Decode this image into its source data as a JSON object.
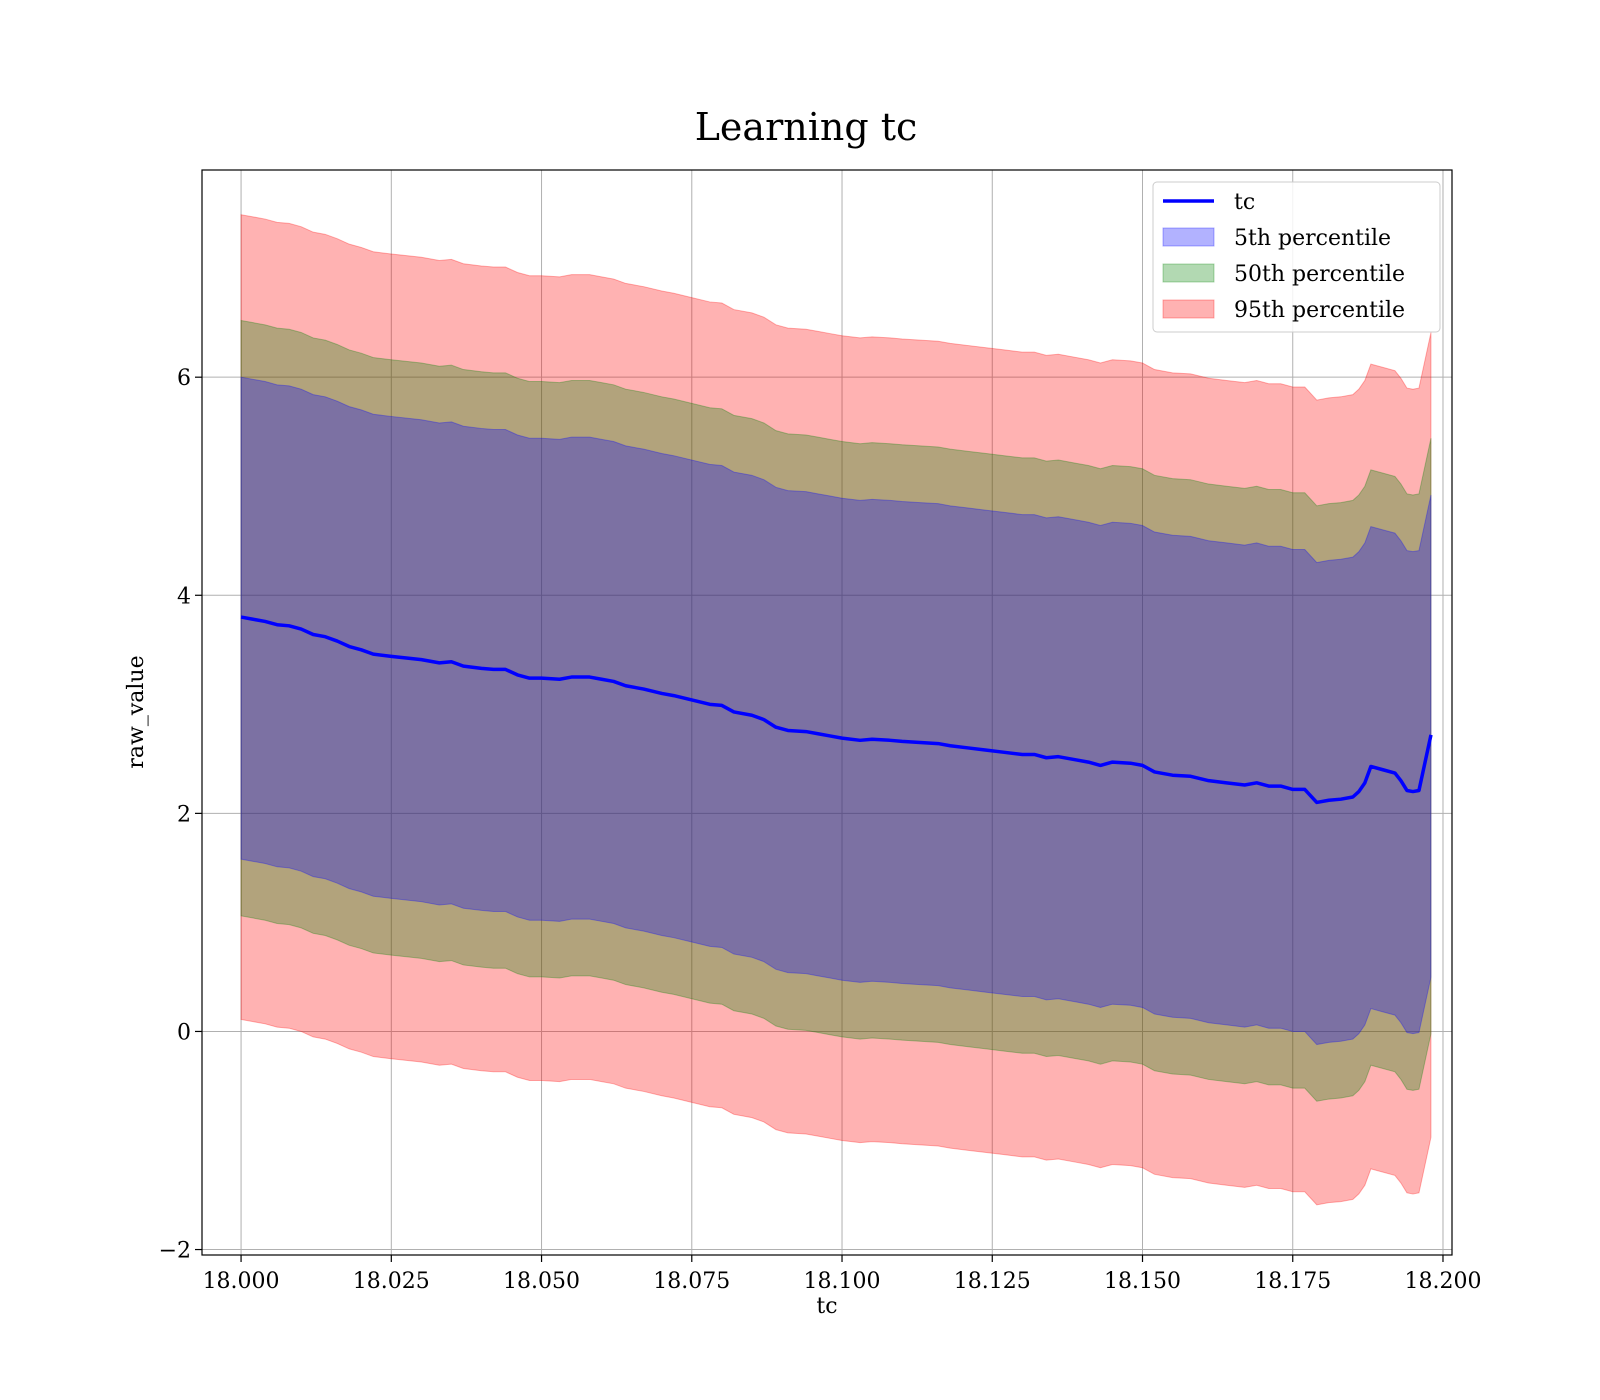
{
  "chart_data": {
    "type": "area",
    "title": "Learning tc",
    "xlabel": "tc",
    "ylabel": "raw_value",
    "xlim": [
      17.9935,
      18.2015
    ],
    "ylim": [
      -2.05,
      7.9
    ],
    "xticks": [
      18.0,
      18.025,
      18.05,
      18.075,
      18.1,
      18.125,
      18.15,
      18.175,
      18.2
    ],
    "xtick_labels": [
      "18.000",
      "18.025",
      "18.050",
      "18.075",
      "18.100",
      "18.125",
      "18.150",
      "18.175",
      "18.200"
    ],
    "yticks": [
      -2,
      0,
      2,
      4,
      6
    ],
    "ytick_labels": [
      "−2",
      "0",
      "2",
      "4",
      "6"
    ],
    "grid": true,
    "legend_position": "top-right",
    "colors": {
      "line": "#0000ff",
      "band_5": "#0000ff",
      "band_50": "#008000",
      "band_95": "#ff0000"
    },
    "x": [
      18.0,
      18.002,
      18.004,
      18.006,
      18.008,
      18.01,
      18.012,
      18.014,
      18.016,
      18.018,
      18.02,
      18.022,
      18.025,
      18.03,
      18.033,
      18.035,
      18.037,
      18.04,
      18.042,
      18.044,
      18.046,
      18.048,
      18.05,
      18.053,
      18.055,
      18.058,
      18.06,
      18.062,
      18.064,
      18.067,
      18.07,
      18.072,
      18.075,
      18.078,
      18.08,
      18.082,
      18.085,
      18.087,
      18.089,
      18.091,
      18.094,
      18.096,
      18.098,
      18.1,
      18.103,
      18.105,
      18.108,
      18.11,
      18.113,
      18.116,
      18.118,
      18.121,
      18.124,
      18.127,
      18.13,
      18.132,
      18.134,
      18.136,
      18.139,
      18.141,
      18.143,
      18.145,
      18.148,
      18.15,
      18.152,
      18.155,
      18.158,
      18.161,
      18.164,
      18.167,
      18.169,
      18.171,
      18.173,
      18.175,
      18.177,
      18.179,
      18.181,
      18.183,
      18.185,
      18.186,
      18.187,
      18.188,
      18.19,
      18.192,
      18.193,
      18.194,
      18.195,
      18.196,
      18.198
    ],
    "series": [
      {
        "name": "tc",
        "values": [
          3.8,
          3.78,
          3.76,
          3.73,
          3.72,
          3.69,
          3.64,
          3.62,
          3.58,
          3.53,
          3.5,
          3.46,
          3.44,
          3.41,
          3.38,
          3.39,
          3.35,
          3.33,
          3.32,
          3.32,
          3.27,
          3.24,
          3.24,
          3.23,
          3.25,
          3.25,
          3.23,
          3.21,
          3.17,
          3.14,
          3.1,
          3.08,
          3.04,
          3.0,
          2.99,
          2.93,
          2.9,
          2.86,
          2.79,
          2.76,
          2.75,
          2.73,
          2.71,
          2.69,
          2.67,
          2.68,
          2.67,
          2.66,
          2.65,
          2.64,
          2.62,
          2.6,
          2.58,
          2.56,
          2.54,
          2.54,
          2.51,
          2.52,
          2.49,
          2.47,
          2.44,
          2.47,
          2.46,
          2.44,
          2.38,
          2.35,
          2.34,
          2.3,
          2.28,
          2.26,
          2.28,
          2.25,
          2.25,
          2.22,
          2.22,
          2.1,
          2.12,
          2.13,
          2.15,
          2.2,
          2.28,
          2.43,
          2.4,
          2.37,
          2.3,
          2.21,
          2.2,
          2.21,
          2.72
        ]
      },
      {
        "name": "5th percentile",
        "values_low": [
          1.58,
          1.56,
          1.54,
          1.51,
          1.5,
          1.47,
          1.42,
          1.4,
          1.36,
          1.31,
          1.28,
          1.24,
          1.22,
          1.19,
          1.16,
          1.17,
          1.13,
          1.11,
          1.1,
          1.1,
          1.05,
          1.02,
          1.02,
          1.01,
          1.03,
          1.03,
          1.01,
          0.99,
          0.95,
          0.92,
          0.88,
          0.86,
          0.82,
          0.78,
          0.77,
          0.71,
          0.68,
          0.64,
          0.57,
          0.54,
          0.53,
          0.51,
          0.49,
          0.47,
          0.45,
          0.46,
          0.45,
          0.44,
          0.43,
          0.42,
          0.4,
          0.38,
          0.36,
          0.34,
          0.32,
          0.32,
          0.29,
          0.3,
          0.27,
          0.25,
          0.22,
          0.25,
          0.24,
          0.22,
          0.16,
          0.13,
          0.12,
          0.08,
          0.06,
          0.04,
          0.06,
          0.03,
          0.03,
          0.0,
          0.0,
          -0.12,
          -0.1,
          -0.09,
          -0.07,
          -0.02,
          0.06,
          0.21,
          0.18,
          0.15,
          0.08,
          -0.01,
          -0.02,
          -0.01,
          0.5
        ],
        "values_high": [
          6.0,
          5.98,
          5.96,
          5.93,
          5.92,
          5.89,
          5.84,
          5.82,
          5.78,
          5.73,
          5.7,
          5.66,
          5.64,
          5.61,
          5.58,
          5.59,
          5.55,
          5.53,
          5.52,
          5.52,
          5.47,
          5.44,
          5.44,
          5.43,
          5.45,
          5.45,
          5.43,
          5.41,
          5.37,
          5.34,
          5.3,
          5.28,
          5.24,
          5.2,
          5.19,
          5.13,
          5.1,
          5.06,
          4.99,
          4.96,
          4.95,
          4.93,
          4.91,
          4.89,
          4.87,
          4.88,
          4.87,
          4.86,
          4.85,
          4.84,
          4.82,
          4.8,
          4.78,
          4.76,
          4.74,
          4.74,
          4.71,
          4.72,
          4.69,
          4.67,
          4.64,
          4.67,
          4.66,
          4.64,
          4.58,
          4.55,
          4.54,
          4.5,
          4.48,
          4.46,
          4.48,
          4.45,
          4.45,
          4.42,
          4.42,
          4.3,
          4.32,
          4.33,
          4.35,
          4.4,
          4.48,
          4.63,
          4.6,
          4.57,
          4.5,
          4.41,
          4.4,
          4.41,
          4.92
        ]
      },
      {
        "name": "50th percentile",
        "values_low": [
          1.06,
          1.04,
          1.02,
          0.99,
          0.98,
          0.95,
          0.9,
          0.88,
          0.84,
          0.79,
          0.76,
          0.72,
          0.7,
          0.67,
          0.64,
          0.65,
          0.61,
          0.59,
          0.58,
          0.58,
          0.53,
          0.5,
          0.5,
          0.49,
          0.51,
          0.51,
          0.49,
          0.47,
          0.43,
          0.4,
          0.36,
          0.34,
          0.3,
          0.26,
          0.25,
          0.19,
          0.16,
          0.12,
          0.05,
          0.02,
          0.01,
          -0.01,
          -0.03,
          -0.05,
          -0.07,
          -0.06,
          -0.07,
          -0.08,
          -0.09,
          -0.1,
          -0.12,
          -0.14,
          -0.16,
          -0.18,
          -0.2,
          -0.2,
          -0.23,
          -0.22,
          -0.25,
          -0.27,
          -0.3,
          -0.27,
          -0.28,
          -0.3,
          -0.36,
          -0.39,
          -0.4,
          -0.44,
          -0.46,
          -0.48,
          -0.46,
          -0.49,
          -0.49,
          -0.52,
          -0.52,
          -0.64,
          -0.62,
          -0.61,
          -0.59,
          -0.54,
          -0.46,
          -0.31,
          -0.34,
          -0.37,
          -0.44,
          -0.53,
          -0.54,
          -0.53,
          -0.02
        ],
        "values_high": [
          6.52,
          6.5,
          6.48,
          6.45,
          6.44,
          6.41,
          6.36,
          6.34,
          6.3,
          6.25,
          6.22,
          6.18,
          6.16,
          6.13,
          6.1,
          6.11,
          6.07,
          6.05,
          6.04,
          6.04,
          5.99,
          5.96,
          5.96,
          5.95,
          5.97,
          5.97,
          5.95,
          5.93,
          5.89,
          5.86,
          5.82,
          5.8,
          5.76,
          5.72,
          5.71,
          5.65,
          5.62,
          5.58,
          5.51,
          5.48,
          5.47,
          5.45,
          5.43,
          5.41,
          5.39,
          5.4,
          5.39,
          5.38,
          5.37,
          5.36,
          5.34,
          5.32,
          5.3,
          5.28,
          5.26,
          5.26,
          5.23,
          5.24,
          5.21,
          5.19,
          5.16,
          5.19,
          5.18,
          5.16,
          5.1,
          5.07,
          5.06,
          5.02,
          5.0,
          4.98,
          5.0,
          4.97,
          4.97,
          4.94,
          4.94,
          4.82,
          4.84,
          4.85,
          4.87,
          4.92,
          5.0,
          5.15,
          5.12,
          5.09,
          5.02,
          4.93,
          4.92,
          4.93,
          5.44
        ]
      },
      {
        "name": "95th percentile",
        "values_low": [
          0.11,
          0.09,
          0.07,
          0.04,
          0.03,
          0.0,
          -0.05,
          -0.07,
          -0.11,
          -0.16,
          -0.19,
          -0.23,
          -0.25,
          -0.28,
          -0.31,
          -0.3,
          -0.34,
          -0.36,
          -0.37,
          -0.37,
          -0.42,
          -0.45,
          -0.45,
          -0.46,
          -0.44,
          -0.44,
          -0.46,
          -0.48,
          -0.52,
          -0.55,
          -0.59,
          -0.61,
          -0.65,
          -0.69,
          -0.7,
          -0.76,
          -0.79,
          -0.83,
          -0.9,
          -0.93,
          -0.94,
          -0.96,
          -0.98,
          -1.0,
          -1.02,
          -1.01,
          -1.02,
          -1.03,
          -1.04,
          -1.05,
          -1.07,
          -1.09,
          -1.11,
          -1.13,
          -1.15,
          -1.15,
          -1.18,
          -1.17,
          -1.2,
          -1.22,
          -1.25,
          -1.22,
          -1.23,
          -1.25,
          -1.31,
          -1.34,
          -1.35,
          -1.39,
          -1.41,
          -1.43,
          -1.41,
          -1.44,
          -1.44,
          -1.47,
          -1.47,
          -1.59,
          -1.57,
          -1.56,
          -1.54,
          -1.49,
          -1.41,
          -1.26,
          -1.29,
          -1.32,
          -1.39,
          -1.48,
          -1.49,
          -1.48,
          -0.97
        ],
        "values_high": [
          7.49,
          7.47,
          7.45,
          7.42,
          7.41,
          7.38,
          7.33,
          7.31,
          7.27,
          7.22,
          7.19,
          7.15,
          7.13,
          7.1,
          7.07,
          7.08,
          7.04,
          7.02,
          7.01,
          7.01,
          6.96,
          6.93,
          6.93,
          6.92,
          6.94,
          6.94,
          6.92,
          6.9,
          6.86,
          6.83,
          6.79,
          6.77,
          6.73,
          6.69,
          6.68,
          6.62,
          6.59,
          6.55,
          6.48,
          6.45,
          6.44,
          6.42,
          6.4,
          6.38,
          6.36,
          6.37,
          6.36,
          6.35,
          6.34,
          6.33,
          6.31,
          6.29,
          6.27,
          6.25,
          6.23,
          6.23,
          6.2,
          6.21,
          6.18,
          6.16,
          6.13,
          6.16,
          6.15,
          6.13,
          6.07,
          6.04,
          6.03,
          5.99,
          5.97,
          5.95,
          5.97,
          5.94,
          5.94,
          5.91,
          5.91,
          5.79,
          5.81,
          5.82,
          5.84,
          5.89,
          5.97,
          6.12,
          6.09,
          6.06,
          5.99,
          5.9,
          5.89,
          5.9,
          6.41
        ]
      }
    ],
    "legend": [
      {
        "label": "tc",
        "kind": "line",
        "color": "#0000ff"
      },
      {
        "label": "5th percentile",
        "kind": "patch",
        "color": "#0000ff"
      },
      {
        "label": "50th percentile",
        "kind": "patch",
        "color": "#008000"
      },
      {
        "label": "95th percentile",
        "kind": "patch",
        "color": "#ff0000"
      }
    ]
  }
}
